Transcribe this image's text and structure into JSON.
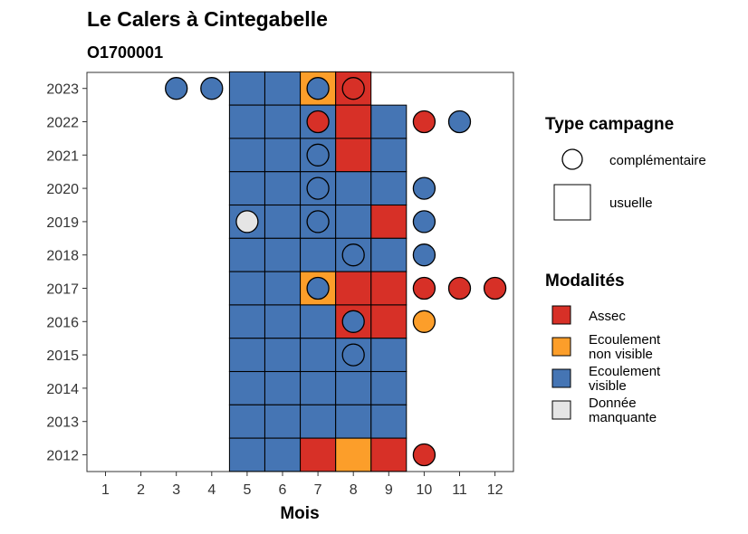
{
  "chart_data": {
    "type": "heatmap",
    "title": "Le Calers à Cintegabelle",
    "subtitle": "O1700001",
    "xlabel": "Mois",
    "ylabel": "",
    "x_ticks": [
      "1",
      "2",
      "3",
      "4",
      "5",
      "6",
      "7",
      "8",
      "9",
      "10",
      "11",
      "12"
    ],
    "y_ticks": [
      "2012",
      "2013",
      "2014",
      "2015",
      "2016",
      "2017",
      "2018",
      "2019",
      "2020",
      "2021",
      "2022",
      "2023"
    ],
    "xlim": [
      1,
      12
    ],
    "ylim": [
      2012,
      2023
    ],
    "grid": false,
    "colors": {
      "Assec": "#d73027",
      "Ecoulement non visible": "#fc9e2a",
      "Ecoulement visible": "#4575b4",
      "Donnée manquante": "#e5e5e5"
    },
    "usuelle": [
      {
        "year": 2023,
        "cells": [
          [
            "5",
            "Ecoulement visible"
          ],
          [
            "6",
            "Ecoulement visible"
          ],
          [
            "7",
            "Ecoulement non visible"
          ],
          [
            "8",
            "Assec"
          ]
        ]
      },
      {
        "year": 2022,
        "cells": [
          [
            "5",
            "Ecoulement visible"
          ],
          [
            "6",
            "Ecoulement visible"
          ],
          [
            "7",
            "Ecoulement visible"
          ],
          [
            "8",
            "Assec"
          ],
          [
            "9",
            "Ecoulement visible"
          ]
        ]
      },
      {
        "year": 2021,
        "cells": [
          [
            "5",
            "Ecoulement visible"
          ],
          [
            "6",
            "Ecoulement visible"
          ],
          [
            "7",
            "Ecoulement visible"
          ],
          [
            "8",
            "Assec"
          ],
          [
            "9",
            "Ecoulement visible"
          ]
        ]
      },
      {
        "year": 2020,
        "cells": [
          [
            "5",
            "Ecoulement visible"
          ],
          [
            "6",
            "Ecoulement visible"
          ],
          [
            "7",
            "Ecoulement visible"
          ],
          [
            "8",
            "Ecoulement visible"
          ],
          [
            "9",
            "Ecoulement visible"
          ]
        ]
      },
      {
        "year": 2019,
        "cells": [
          [
            "5",
            "Ecoulement visible"
          ],
          [
            "6",
            "Ecoulement visible"
          ],
          [
            "7",
            "Ecoulement visible"
          ],
          [
            "8",
            "Ecoulement visible"
          ],
          [
            "9",
            "Assec"
          ]
        ]
      },
      {
        "year": 2018,
        "cells": [
          [
            "5",
            "Ecoulement visible"
          ],
          [
            "6",
            "Ecoulement visible"
          ],
          [
            "7",
            "Ecoulement visible"
          ],
          [
            "8",
            "Ecoulement visible"
          ],
          [
            "9",
            "Ecoulement visible"
          ]
        ]
      },
      {
        "year": 2017,
        "cells": [
          [
            "5",
            "Ecoulement visible"
          ],
          [
            "6",
            "Ecoulement visible"
          ],
          [
            "7",
            "Ecoulement non visible"
          ],
          [
            "8",
            "Assec"
          ],
          [
            "9",
            "Assec"
          ]
        ]
      },
      {
        "year": 2016,
        "cells": [
          [
            "5",
            "Ecoulement visible"
          ],
          [
            "6",
            "Ecoulement visible"
          ],
          [
            "7",
            "Ecoulement visible"
          ],
          [
            "8",
            "Assec"
          ],
          [
            "9",
            "Assec"
          ]
        ]
      },
      {
        "year": 2015,
        "cells": [
          [
            "5",
            "Ecoulement visible"
          ],
          [
            "6",
            "Ecoulement visible"
          ],
          [
            "7",
            "Ecoulement visible"
          ],
          [
            "8",
            "Ecoulement visible"
          ],
          [
            "9",
            "Ecoulement visible"
          ]
        ]
      },
      {
        "year": 2014,
        "cells": [
          [
            "5",
            "Ecoulement visible"
          ],
          [
            "6",
            "Ecoulement visible"
          ],
          [
            "7",
            "Ecoulement visible"
          ],
          [
            "8",
            "Ecoulement visible"
          ],
          [
            "9",
            "Ecoulement visible"
          ]
        ]
      },
      {
        "year": 2013,
        "cells": [
          [
            "5",
            "Ecoulement visible"
          ],
          [
            "6",
            "Ecoulement visible"
          ],
          [
            "7",
            "Ecoulement visible"
          ],
          [
            "8",
            "Ecoulement visible"
          ],
          [
            "9",
            "Ecoulement visible"
          ]
        ]
      },
      {
        "year": 2012,
        "cells": [
          [
            "5",
            "Ecoulement visible"
          ],
          [
            "6",
            "Ecoulement visible"
          ],
          [
            "7",
            "Assec"
          ],
          [
            "8",
            "Ecoulement non visible"
          ],
          [
            "9",
            "Assec"
          ]
        ]
      }
    ],
    "complementaire": [
      {
        "year": 2023,
        "points": [
          [
            "3",
            "Ecoulement visible"
          ],
          [
            "4",
            "Ecoulement visible"
          ],
          [
            "7",
            "Ecoulement visible"
          ],
          [
            "8",
            "Assec"
          ]
        ]
      },
      {
        "year": 2022,
        "points": [
          [
            "7",
            "Assec"
          ],
          [
            "10",
            "Assec"
          ],
          [
            "11",
            "Ecoulement visible"
          ]
        ]
      },
      {
        "year": 2021,
        "points": [
          [
            "7",
            "Ecoulement visible"
          ]
        ]
      },
      {
        "year": 2020,
        "points": [
          [
            "7",
            "Ecoulement visible"
          ],
          [
            "10",
            "Ecoulement visible"
          ]
        ]
      },
      {
        "year": 2019,
        "points": [
          [
            "5",
            "Donnée manquante"
          ],
          [
            "7",
            "Ecoulement visible"
          ],
          [
            "10",
            "Ecoulement visible"
          ]
        ]
      },
      {
        "year": 2018,
        "points": [
          [
            "8",
            "Ecoulement visible"
          ],
          [
            "10",
            "Ecoulement visible"
          ]
        ]
      },
      {
        "year": 2017,
        "points": [
          [
            "7",
            "Ecoulement visible"
          ],
          [
            "10",
            "Assec"
          ],
          [
            "11",
            "Assec"
          ],
          [
            "12",
            "Assec"
          ]
        ]
      },
      {
        "year": 2016,
        "points": [
          [
            "8",
            "Ecoulement visible"
          ],
          [
            "10",
            "Ecoulement non visible"
          ]
        ]
      },
      {
        "year": 2015,
        "points": [
          [
            "8",
            "Ecoulement visible"
          ]
        ]
      },
      {
        "year": 2012,
        "points": [
          [
            "10",
            "Assec"
          ]
        ]
      }
    ]
  },
  "legend": {
    "type_title": "Type campagne",
    "type_items": [
      {
        "key": "complementaire",
        "label": "complémentaire"
      },
      {
        "key": "usuelle",
        "label": "usuelle"
      }
    ],
    "mod_title": "Modalités",
    "mod_items": [
      {
        "key": "Assec",
        "lines": [
          "Assec"
        ]
      },
      {
        "key": "Ecoulement non visible",
        "lines": [
          "Ecoulement",
          "non visible"
        ]
      },
      {
        "key": "Ecoulement visible",
        "lines": [
          "Ecoulement",
          "visible"
        ]
      },
      {
        "key": "Donnée manquante",
        "lines": [
          "Donnée",
          "manquante"
        ]
      }
    ]
  }
}
